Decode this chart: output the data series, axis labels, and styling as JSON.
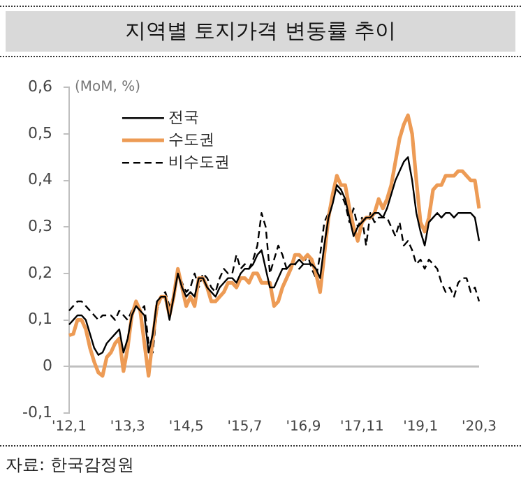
{
  "chart_data": {
    "type": "line",
    "title": "지역별 토지가격 변동률 추이",
    "ylabel": "(MoM, %)",
    "annotations": [
      "자료: 한국감정원"
    ],
    "categories": [
      "'12,1",
      null,
      null,
      null,
      null,
      null,
      null,
      null,
      null,
      null,
      null,
      null,
      null,
      null,
      "'13,3",
      null,
      null,
      null,
      null,
      null,
      null,
      null,
      null,
      null,
      null,
      null,
      null,
      null,
      "'14,5",
      null,
      null,
      null,
      null,
      null,
      null,
      null,
      null,
      null,
      null,
      null,
      null,
      null,
      "'15,7",
      null,
      null,
      null,
      null,
      null,
      null,
      null,
      null,
      null,
      null,
      null,
      null,
      null,
      "'16,9",
      null,
      null,
      null,
      null,
      null,
      null,
      null,
      null,
      null,
      null,
      null,
      null,
      null,
      "'17,11",
      null,
      null,
      null,
      null,
      null,
      null,
      null,
      null,
      null,
      null,
      null,
      null,
      null,
      "'19,1",
      null,
      null,
      null,
      null,
      null,
      null,
      null,
      null,
      null,
      null,
      null,
      null,
      null,
      "'20,3"
    ],
    "series": [
      {
        "name": "전국",
        "color": "#000000",
        "line_style": "solid",
        "values": [
          0.09,
          0.1,
          0.11,
          0.11,
          0.1,
          0.07,
          0.04,
          0.025,
          0.03,
          0.05,
          0.06,
          0.07,
          0.08,
          0.03,
          0.06,
          0.11,
          0.13,
          0.12,
          0.11,
          0.03,
          0.07,
          0.14,
          0.15,
          0.15,
          0.1,
          0.15,
          0.2,
          0.17,
          0.15,
          0.16,
          0.15,
          0.19,
          0.19,
          0.17,
          0.16,
          0.15,
          0.17,
          0.18,
          0.19,
          0.19,
          0.18,
          0.2,
          0.21,
          0.21,
          0.22,
          0.24,
          0.25,
          0.21,
          0.17,
          0.17,
          0.19,
          0.21,
          0.21,
          0.22,
          0.22,
          0.23,
          0.22,
          0.22,
          0.22,
          0.21,
          0.19,
          0.26,
          0.32,
          0.35,
          0.39,
          0.38,
          0.36,
          0.32,
          0.28,
          0.3,
          0.31,
          0.32,
          0.32,
          0.33,
          0.33,
          0.32,
          0.34,
          0.37,
          0.4,
          0.42,
          0.44,
          0.45,
          0.4,
          0.33,
          0.29,
          0.26,
          0.31,
          0.32,
          0.33,
          0.32,
          0.33,
          0.33,
          0.32,
          0.33,
          0.33,
          0.33,
          0.33,
          0.32,
          0.27
        ]
      },
      {
        "name": "수도권",
        "color": "#ed9b55",
        "line_style": "solid",
        "values": [
          0.067,
          0.07,
          0.1,
          0.1,
          0.08,
          0.04,
          0.01,
          -0.013,
          -0.02,
          0.02,
          0.03,
          0.05,
          0.06,
          -0.01,
          0.04,
          0.11,
          0.14,
          0.12,
          0.05,
          -0.02,
          0.06,
          0.13,
          0.15,
          0.15,
          0.11,
          0.15,
          0.21,
          0.17,
          0.13,
          0.15,
          0.13,
          0.19,
          0.19,
          0.17,
          0.14,
          0.14,
          0.15,
          0.16,
          0.18,
          0.18,
          0.17,
          0.19,
          0.19,
          0.18,
          0.2,
          0.2,
          0.18,
          0.18,
          0.18,
          0.13,
          0.14,
          0.17,
          0.19,
          0.21,
          0.24,
          0.24,
          0.23,
          0.24,
          0.23,
          0.2,
          0.16,
          0.24,
          0.32,
          0.37,
          0.41,
          0.39,
          0.39,
          0.34,
          0.3,
          0.27,
          0.31,
          0.32,
          0.32,
          0.33,
          0.36,
          0.34,
          0.36,
          0.39,
          0.44,
          0.49,
          0.52,
          0.54,
          0.5,
          0.4,
          0.31,
          0.29,
          0.32,
          0.38,
          0.39,
          0.39,
          0.41,
          0.41,
          0.41,
          0.42,
          0.42,
          0.41,
          0.4,
          0.4,
          0.34
        ]
      },
      {
        "name": "비수도권",
        "color": "#000000",
        "line_style": "dashed",
        "values": [
          0.12,
          0.13,
          0.14,
          0.14,
          0.13,
          0.12,
          0.11,
          0.1,
          0.11,
          0.11,
          0.11,
          0.1,
          0.12,
          0.11,
          0.1,
          0.12,
          0.13,
          0.12,
          0.13,
          0.05,
          0.03,
          0.12,
          0.15,
          0.16,
          0.13,
          0.15,
          0.2,
          0.18,
          0.16,
          0.17,
          0.2,
          0.17,
          0.2,
          0.19,
          0.17,
          0.16,
          0.19,
          0.21,
          0.2,
          0.2,
          0.24,
          0.21,
          0.22,
          0.21,
          0.23,
          0.26,
          0.33,
          0.3,
          0.2,
          0.23,
          0.26,
          0.24,
          0.21,
          0.22,
          0.22,
          0.21,
          0.22,
          0.24,
          0.21,
          0.19,
          0.24,
          0.31,
          0.33,
          0.37,
          0.38,
          0.37,
          0.35,
          0.31,
          0.34,
          0.3,
          0.32,
          0.26,
          0.33,
          0.31,
          0.32,
          0.32,
          0.32,
          0.3,
          0.28,
          0.31,
          0.26,
          0.27,
          0.25,
          0.22,
          0.23,
          0.21,
          0.23,
          0.22,
          0.21,
          0.18,
          0.16,
          0.17,
          0.15,
          0.18,
          0.19,
          0.19,
          0.16,
          0.17,
          0.14
        ]
      }
    ],
    "ylim": [
      -0.1,
      0.6
    ],
    "yticks": [
      {
        "value": -0.1,
        "label": "-0,1"
      },
      0,
      {
        "value": 0.1,
        "label": "0,1"
      },
      {
        "value": 0.2,
        "label": "0,2"
      },
      {
        "value": 0.3,
        "label": "0,3"
      },
      {
        "value": 0.4,
        "label": "0,4"
      },
      {
        "value": 0.5,
        "label": "0,5"
      },
      {
        "value": 0.6,
        "label": "0,6"
      }
    ],
    "ref_lines": [
      {
        "axis": "y",
        "value": 0,
        "color": "#bfbfbf"
      }
    ],
    "legend": "top left",
    "grid": false,
    "marker": "none"
  }
}
